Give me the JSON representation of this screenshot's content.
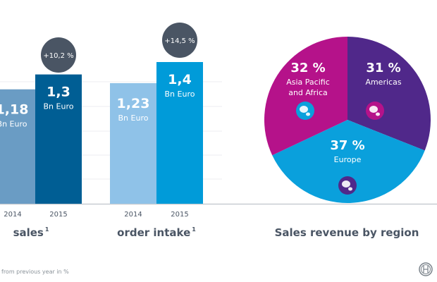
{
  "chart_data": [
    {
      "type": "bar",
      "title": "sales",
      "title_footnote": "1",
      "categories": [
        "2014",
        "2015"
      ],
      "values": [
        1.18,
        1.3
      ],
      "value_labels": [
        "1,18",
        "1,3"
      ],
      "unit": "Bn Euro",
      "change_label": "+10,2 %",
      "colors": [
        "#6a9cc4",
        "#005e94"
      ]
    },
    {
      "type": "bar",
      "title": "order intake",
      "title_footnote": "1",
      "categories": [
        "2014",
        "2015"
      ],
      "values": [
        1.23,
        1.4
      ],
      "value_labels": [
        "1,23",
        "1,4"
      ],
      "unit": "Bn Euro",
      "change_label": "+14,5 %",
      "colors": [
        "#8fc2e8",
        "#009bd9"
      ]
    },
    {
      "type": "pie",
      "title": "Sales revenue by region",
      "slices": [
        {
          "label": "Americas",
          "value": 31,
          "value_label": "31 %",
          "color": "#50288a",
          "icon": "americas-globe-icon",
          "icon_color": "#b5128a"
        },
        {
          "label": "Europe",
          "value": 37,
          "value_label": "37 %",
          "color": "#0aa0dc",
          "icon": "europe-globe-icon",
          "icon_color": "#50288a"
        },
        {
          "label": "Asia Pacific and Africa",
          "label_lines": [
            "Asia Pacific",
            "and Africa"
          ],
          "value": 32,
          "value_label": "32 %",
          "color": "#b5128a",
          "icon": "asia-globe-icon",
          "icon_color": "#0aa0dc"
        }
      ]
    }
  ],
  "footnote": "from previous year in %",
  "change_bubble_color": "#4a5564",
  "logo": "bosch-logo"
}
